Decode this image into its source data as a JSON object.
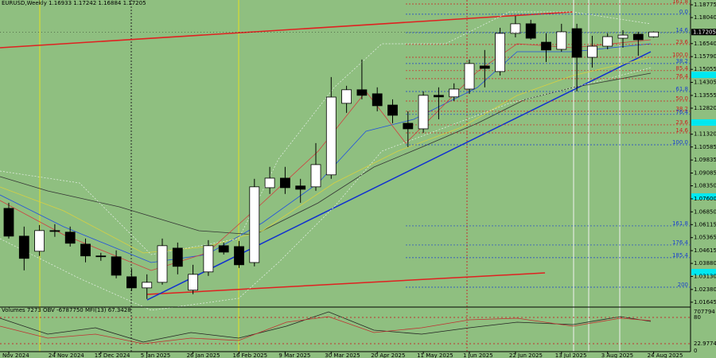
{
  "chart_data": {
    "type": "candlestick",
    "title": "EURUSD,Weekly  1.16933 1.17242 1.16884 1.17205",
    "categories": [
      "Nov 2024",
      null,
      null,
      "24 Nov 2024",
      null,
      null,
      "15 Dec 2024",
      null,
      null,
      "5 Jan 2025",
      null,
      null,
      "26 Jan 2025",
      null,
      null,
      "16 Feb 2025",
      null,
      null,
      "9 Mar 2025",
      null,
      null,
      "30 Mar 2025",
      null,
      null,
      "20 Apr 2025",
      null,
      null,
      "11 May 2025",
      null,
      null,
      "1 Jun 2025",
      null,
      null,
      "22 Jun 2025",
      null,
      null,
      "13 Jul 2025",
      null,
      null,
      "3 Aug 2025",
      null,
      null,
      "24 Aug 2025"
    ],
    "open": [
      1.0705,
      1.0545,
      1.0458,
      1.0577,
      1.0568,
      1.0499,
      1.0431,
      1.0426,
      1.0311,
      1.0247,
      1.0279,
      1.0476,
      1.0234,
      1.0339,
      1.049,
      1.0485,
      1.0393,
      1.0824,
      1.0879,
      1.0834,
      1.0829,
      1.0898,
      1.131,
      1.1388,
      1.1365,
      1.13,
      1.1195,
      1.1163,
      1.1356,
      1.1347,
      1.1392,
      1.1525,
      1.1493,
      1.1713,
      1.1768,
      1.1662,
      1.1621,
      1.174,
      1.1575,
      1.1639,
      1.1685,
      1.1708,
      1.16933
    ],
    "high": [
      1.0737,
      1.06,
      1.0609,
      1.0614,
      1.06,
      1.0531,
      1.0449,
      1.0463,
      1.0357,
      1.0325,
      1.0531,
      1.0508,
      1.038,
      1.0522,
      1.0508,
      1.0517,
      1.0875,
      1.0944,
      1.0944,
      1.0875,
      1.1081,
      1.1461,
      1.1411,
      1.1562,
      1.1402,
      1.1333,
      1.1264,
      1.1379,
      1.1402,
      1.1425,
      1.1562,
      1.1617,
      1.1745,
      1.1813,
      1.1791,
      1.1713,
      1.1768,
      1.1768,
      1.1699,
      1.1713,
      1.1731,
      1.1722,
      1.17242
    ],
    "low": [
      1.0531,
      1.0348,
      1.0431,
      1.0541,
      1.0485,
      1.0394,
      1.0403,
      1.0302,
      1.0229,
      1.0183,
      1.0265,
      1.0325,
      1.0211,
      1.0316,
      1.0439,
      1.0362,
      1.0371,
      1.0788,
      1.0788,
      1.0737,
      1.0806,
      1.0875,
      1.1255,
      1.1333,
      1.1264,
      1.1195,
      1.1058,
      1.114,
      1.1218,
      1.1323,
      1.1365,
      1.1402,
      1.147,
      1.169,
      1.1676,
      1.1548,
      1.1607,
      1.1379,
      1.1516,
      1.1621,
      1.163,
      1.1584,
      1.16884
    ],
    "close": [
      1.0545,
      1.0417,
      1.0577,
      1.0572,
      1.0504,
      1.0431,
      1.0427,
      1.032,
      1.0247,
      1.0279,
      1.049,
      1.0371,
      1.0325,
      1.049,
      1.0453,
      1.038,
      1.0829,
      1.0879,
      1.0824,
      1.0815,
      1.0957,
      1.1346,
      1.1388,
      1.1356,
      1.1296,
      1.1241,
      1.1163,
      1.1356,
      1.1347,
      1.1392,
      1.1539,
      1.1511,
      1.1713,
      1.1768,
      1.1685,
      1.1617,
      1.1722,
      1.1575,
      1.1639,
      1.1694,
      1.1703,
      1.1676,
      1.17205
    ],
    "up_color": "#ffffff",
    "down_color": "#000000",
    "ylim": [
      1.0141,
      1.1905
    ],
    "yticks": [
      {
        "value": 1.18775,
        "label": "1.18775"
      },
      {
        "value": 1.1804,
        "label": "1.18040"
      },
      {
        "value": 1.1654,
        "label": "1.16540"
      },
      {
        "value": 1.1579,
        "label": "1.15790"
      },
      {
        "value": 1.15055,
        "label": "1.15055"
      },
      {
        "value": 1.14305,
        "label": "1.14305"
      },
      {
        "value": 1.13555,
        "label": "1.13555"
      },
      {
        "value": 1.1282,
        "label": "1.12820"
      },
      {
        "value": 1.1132,
        "label": "1.11320"
      },
      {
        "value": 1.10585,
        "label": "1.10585"
      },
      {
        "value": 1.09835,
        "label": "1.09835"
      },
      {
        "value": 1.09085,
        "label": "1.09085"
      },
      {
        "value": 1.0835,
        "label": "1.08350"
      },
      {
        "value": 1.076,
        "label": "1.07600"
      },
      {
        "value": 1.0685,
        "label": "1.06850"
      },
      {
        "value": 1.06115,
        "label": "1.06115"
      },
      {
        "value": 1.05365,
        "label": "1.05365"
      },
      {
        "value": 1.04615,
        "label": "1.04615"
      },
      {
        "value": 1.0388,
        "label": "1.03880"
      },
      {
        "value": 1.0313,
        "label": "1.03130"
      },
      {
        "value": 1.0238,
        "label": "1.02380"
      },
      {
        "value": 1.01645,
        "label": "1.01645"
      }
    ],
    "grid": false,
    "current_price": {
      "value": 1.17205,
      "label": "1.17205"
    },
    "fib_levels": [
      {
        "label": "161.8",
        "value": 1.1882,
        "color": "#d02020"
      },
      {
        "label": "0.0",
        "value": 1.1823,
        "color": "#1a3fd0"
      },
      {
        "label": "14.6",
        "value": 1.1717,
        "color": "#1a3fd0"
      },
      {
        "label": "23.6",
        "value": 1.1649,
        "color": "#d02020"
      },
      {
        "label": "100.0",
        "value": 1.1575,
        "color": "#d02020"
      },
      {
        "label": "38.2",
        "value": 1.1539,
        "color": "#1a3fd0"
      },
      {
        "label": "85.4",
        "value": 1.1498,
        "color": "#d02020"
      },
      {
        "label": "76.4",
        "value": 1.1452,
        "color": "#d02020"
      },
      {
        "label": "61.8",
        "value": 1.1378,
        "color": "#1a3fd0"
      },
      {
        "label": "50.0",
        "value": 1.1323,
        "color": "#d02020"
      },
      {
        "label": "38.2",
        "value": 1.1264,
        "color": "#d02020"
      },
      {
        "label": "76.4",
        "value": 1.1246,
        "color": "#1a3fd0"
      },
      {
        "label": "23.6",
        "value": 1.1186,
        "color": "#d02020"
      },
      {
        "label": "14.6",
        "value": 1.114,
        "color": "#d02020"
      },
      {
        "label": "100.0",
        "value": 1.1071,
        "color": "#1a3fd0"
      },
      {
        "label": "161.8",
        "value": 1.0604,
        "color": "#1a3fd0"
      },
      {
        "label": "176.4",
        "value": 1.0494,
        "color": "#1a3fd0"
      },
      {
        "label": "185.4",
        "value": 1.0421,
        "color": "#1a3fd0"
      },
      {
        "label": "200",
        "value": 1.0251,
        "color": "#1a3fd0"
      }
    ],
    "indicator": {
      "header": "Volumes 7273  OBV -6787750  MFI(13) 67.3428",
      "levels": [
        "707794",
        "80",
        "22.9774",
        "0"
      ]
    }
  }
}
